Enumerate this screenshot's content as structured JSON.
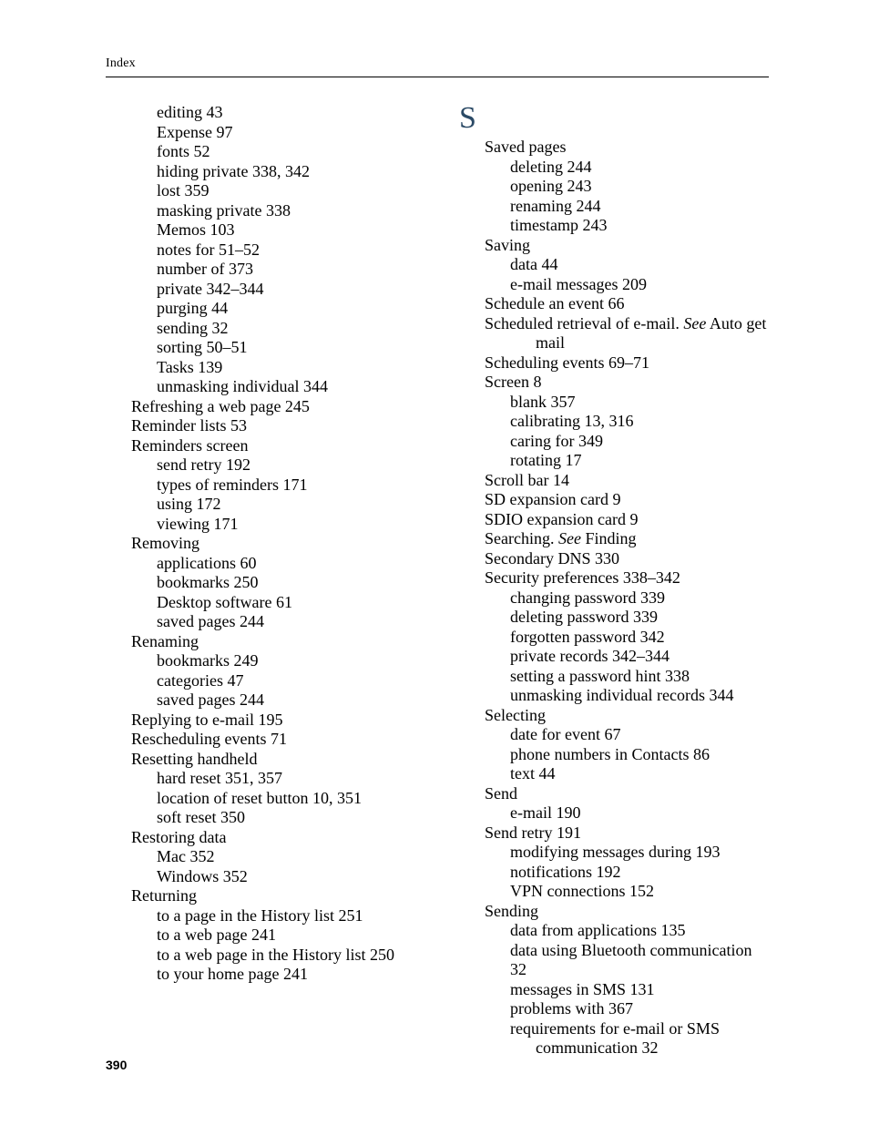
{
  "header": {
    "running_head": "Index"
  },
  "footer": {
    "page_number": "390"
  },
  "section_letter_S": "S",
  "left_column": [
    {
      "lvl": 2,
      "text": "editing  43"
    },
    {
      "lvl": 2,
      "text": "Expense  97"
    },
    {
      "lvl": 2,
      "text": "fonts  52"
    },
    {
      "lvl": 2,
      "text": "hiding private  338, 342"
    },
    {
      "lvl": 2,
      "text": "lost  359"
    },
    {
      "lvl": 2,
      "text": "masking private  338"
    },
    {
      "lvl": 2,
      "text": "Memos  103"
    },
    {
      "lvl": 2,
      "text": "notes for  51–52"
    },
    {
      "lvl": 2,
      "text": "number of  373"
    },
    {
      "lvl": 2,
      "text": "private  342–344"
    },
    {
      "lvl": 2,
      "text": "purging  44"
    },
    {
      "lvl": 2,
      "text": "sending  32"
    },
    {
      "lvl": 2,
      "text": "sorting  50–51"
    },
    {
      "lvl": 2,
      "text": "Tasks  139"
    },
    {
      "lvl": 2,
      "text": "unmasking individual  344"
    },
    {
      "lvl": 1,
      "text": "Refreshing a web page  245"
    },
    {
      "lvl": 1,
      "text": "Reminder lists  53"
    },
    {
      "lvl": 1,
      "text": "Reminders screen"
    },
    {
      "lvl": 2,
      "text": "send retry  192"
    },
    {
      "lvl": 2,
      "text": "types of reminders  171"
    },
    {
      "lvl": 2,
      "text": "using  172"
    },
    {
      "lvl": 2,
      "text": "viewing  171"
    },
    {
      "lvl": 1,
      "text": "Removing"
    },
    {
      "lvl": 2,
      "text": "applications  60"
    },
    {
      "lvl": 2,
      "text": "bookmarks  250"
    },
    {
      "lvl": 2,
      "text": "Desktop software  61"
    },
    {
      "lvl": 2,
      "text": "saved pages  244"
    },
    {
      "lvl": 1,
      "text": "Renaming"
    },
    {
      "lvl": 2,
      "text": "bookmarks  249"
    },
    {
      "lvl": 2,
      "text": "categories  47"
    },
    {
      "lvl": 2,
      "text": "saved pages  244"
    },
    {
      "lvl": 1,
      "text": "Replying to e-mail  195"
    },
    {
      "lvl": 1,
      "text": "Rescheduling events  71"
    },
    {
      "lvl": 1,
      "text": "Resetting handheld"
    },
    {
      "lvl": 2,
      "text": "hard reset  351, 357"
    },
    {
      "lvl": 2,
      "text": "location of reset button  10, 351"
    },
    {
      "lvl": 2,
      "text": "soft reset  350"
    },
    {
      "lvl": 1,
      "text": "Restoring data"
    },
    {
      "lvl": 2,
      "text": "Mac  352"
    },
    {
      "lvl": 2,
      "text": "Windows  352"
    },
    {
      "lvl": 1,
      "text": "Returning"
    },
    {
      "lvl": 2,
      "text": "to a page in the History list  251"
    },
    {
      "lvl": 2,
      "text": "to a web page  241"
    },
    {
      "lvl": 2,
      "text": "to a web page in the History list  250"
    },
    {
      "lvl": 2,
      "text": "to your home page  241"
    }
  ],
  "right_column": [
    {
      "lvl": 1,
      "text": "Saved pages"
    },
    {
      "lvl": 2,
      "text": "deleting  244"
    },
    {
      "lvl": 2,
      "text": "opening  243"
    },
    {
      "lvl": 2,
      "text": "renaming  244"
    },
    {
      "lvl": 2,
      "text": "timestamp  243"
    },
    {
      "lvl": 1,
      "text": "Saving"
    },
    {
      "lvl": 2,
      "text": "data  44"
    },
    {
      "lvl": 2,
      "text": "e-mail messages  209"
    },
    {
      "lvl": 1,
      "text": "Schedule an event  66"
    },
    {
      "lvl": 1,
      "runs": [
        {
          "t": "Scheduled retrieval of e-mail. "
        },
        {
          "t": "See",
          "italic": true
        },
        {
          "t": " Auto get"
        }
      ]
    },
    {
      "lvl": 3,
      "text": "mail"
    },
    {
      "lvl": 1,
      "text": "Scheduling events  69–71"
    },
    {
      "lvl": 1,
      "text": "Screen  8"
    },
    {
      "lvl": 2,
      "text": "blank  357"
    },
    {
      "lvl": 2,
      "text": "calibrating  13, 316"
    },
    {
      "lvl": 2,
      "text": "caring for  349"
    },
    {
      "lvl": 2,
      "text": "rotating  17"
    },
    {
      "lvl": 1,
      "text": "Scroll bar  14"
    },
    {
      "lvl": 1,
      "text": "SD expansion card  9"
    },
    {
      "lvl": 1,
      "text": "SDIO expansion card  9"
    },
    {
      "lvl": 1,
      "runs": [
        {
          "t": "Searching. "
        },
        {
          "t": "See",
          "italic": true
        },
        {
          "t": " Finding"
        }
      ]
    },
    {
      "lvl": 1,
      "text": "Secondary DNS  330"
    },
    {
      "lvl": 1,
      "text": "Security preferences  338–342"
    },
    {
      "lvl": 2,
      "text": "changing password  339"
    },
    {
      "lvl": 2,
      "text": "deleting password  339"
    },
    {
      "lvl": 2,
      "text": "forgotten password  342"
    },
    {
      "lvl": 2,
      "text": "private records  342–344"
    },
    {
      "lvl": 2,
      "text": "setting a password hint  338"
    },
    {
      "lvl": 2,
      "text": "unmasking individual records  344"
    },
    {
      "lvl": 1,
      "text": "Selecting"
    },
    {
      "lvl": 2,
      "text": "date for event  67"
    },
    {
      "lvl": 2,
      "text": "phone numbers in Contacts  86"
    },
    {
      "lvl": 2,
      "text": "text  44"
    },
    {
      "lvl": 1,
      "text": "Send"
    },
    {
      "lvl": 2,
      "text": "e-mail  190"
    },
    {
      "lvl": 1,
      "text": "Send retry  191"
    },
    {
      "lvl": 2,
      "text": "modifying messages during  193"
    },
    {
      "lvl": 2,
      "text": "notifications  192"
    },
    {
      "lvl": 2,
      "text": "VPN connections  152"
    },
    {
      "lvl": 1,
      "text": "Sending"
    },
    {
      "lvl": 2,
      "text": "data from applications  135"
    },
    {
      "lvl": 2,
      "text": "data using Bluetooth communication  32"
    },
    {
      "lvl": 2,
      "text": "messages in SMS  131"
    },
    {
      "lvl": 2,
      "text": "problems with  367"
    },
    {
      "lvl": 2,
      "text": "requirements for e-mail or SMS "
    },
    {
      "lvl": "cont",
      "text": "communication  32"
    }
  ]
}
